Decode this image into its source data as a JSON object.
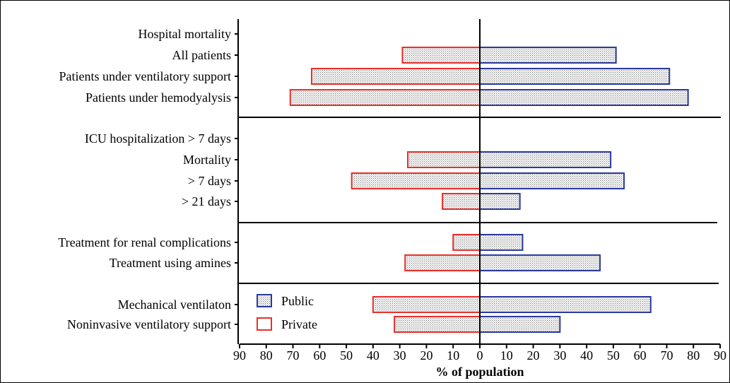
{
  "chart_data": {
    "type": "bar",
    "orientation": "horizontal-diverging",
    "xlabel": "% of population",
    "xlim": [
      -90,
      90
    ],
    "xticks": [
      "90",
      "80",
      "70",
      "60",
      "50",
      "40",
      "30",
      "20",
      "10",
      "0",
      "10",
      "20",
      "30",
      "40",
      "50",
      "60",
      "70",
      "80",
      "90"
    ],
    "grid": false,
    "legend_position": "bottom-left",
    "categories": [
      "Hospital mortality",
      "All patients",
      "Patients under ventilatory support",
      "Patients under hemodyalysis",
      "ICU hospitalization > 7 days",
      "Mortality",
      "> 7 days",
      "> 21 days",
      "Treatment for renal complications",
      "Treatment using amines",
      "Mechanical ventilaton",
      "Noninvasive ventilatory support"
    ],
    "groups": [
      {
        "start": 0,
        "end": 3
      },
      {
        "start": 4,
        "end": 7
      },
      {
        "start": 8,
        "end": 9
      },
      {
        "start": 10,
        "end": 11
      }
    ],
    "series": [
      {
        "name": "Public",
        "side": "right",
        "color": "#2a3a9e",
        "values": [
          null,
          51,
          71,
          78,
          null,
          49,
          54,
          15,
          16,
          45,
          64,
          30
        ]
      },
      {
        "name": "Private",
        "side": "left",
        "color": "#e8302a",
        "values": [
          null,
          29,
          63,
          71,
          null,
          27,
          48,
          14,
          10,
          28,
          40,
          32
        ]
      }
    ]
  }
}
